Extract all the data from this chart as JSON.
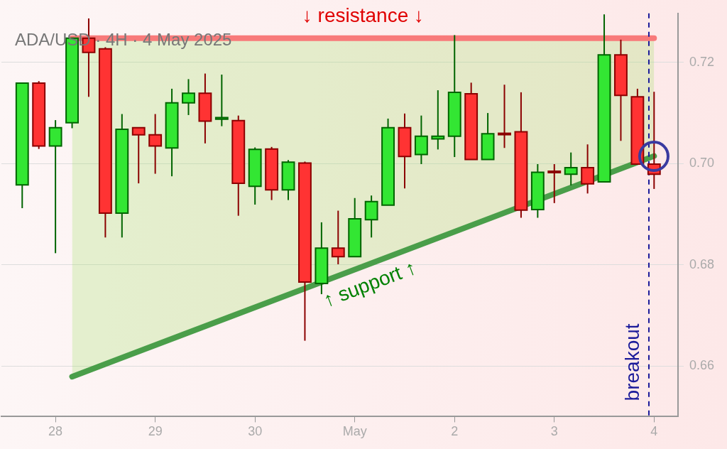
{
  "chart_data": {
    "type": "candlestick",
    "title": "ADA/USD · 4H · 4 May 2025",
    "x": [
      "2025-04-27T16:00",
      "2025-04-27T20:00",
      "2025-04-28T00:00",
      "2025-04-28T04:00",
      "2025-04-28T08:00",
      "2025-04-28T12:00",
      "2025-04-28T16:00",
      "2025-04-28T20:00",
      "2025-04-29T00:00",
      "2025-04-29T04:00",
      "2025-04-29T08:00",
      "2025-04-29T12:00",
      "2025-04-29T16:00",
      "2025-04-29T20:00",
      "2025-04-30T00:00",
      "2025-04-30T04:00",
      "2025-04-30T08:00",
      "2025-04-30T12:00",
      "2025-04-30T16:00",
      "2025-04-30T20:00",
      "2025-05-01T00:00",
      "2025-05-01T04:00",
      "2025-05-01T08:00",
      "2025-05-01T12:00",
      "2025-05-01T16:00",
      "2025-05-01T20:00",
      "2025-05-02T00:00",
      "2025-05-02T04:00",
      "2025-05-02T08:00",
      "2025-05-02T12:00",
      "2025-05-02T16:00",
      "2025-05-02T20:00",
      "2025-05-03T00:00",
      "2025-05-03T04:00",
      "2025-05-03T08:00",
      "2025-05-03T12:00",
      "2025-05-03T16:00",
      "2025-05-03T20:00",
      "2025-05-04T00:00"
    ],
    "ohlc": [
      [
        0.6958,
        0.7159,
        0.6912,
        0.7159
      ],
      [
        0.7159,
        0.7163,
        0.7029,
        0.7035
      ],
      [
        0.7035,
        0.7086,
        0.6823,
        0.7071
      ],
      [
        0.7081,
        0.7249,
        0.707,
        0.7248
      ],
      [
        0.7248,
        0.7287,
        0.7132,
        0.722
      ],
      [
        0.7227,
        0.723,
        0.6854,
        0.6902
      ],
      [
        0.6902,
        0.7098,
        0.6854,
        0.7068
      ],
      [
        0.7071,
        0.7071,
        0.6961,
        0.7057
      ],
      [
        0.7057,
        0.7098,
        0.698,
        0.7035
      ],
      [
        0.7031,
        0.7148,
        0.6975,
        0.712
      ],
      [
        0.712,
        0.7167,
        0.7096,
        0.7139
      ],
      [
        0.7139,
        0.7178,
        0.704,
        0.7084
      ],
      [
        0.7088,
        0.7176,
        0.7074,
        0.7091
      ],
      [
        0.7085,
        0.7095,
        0.6897,
        0.6961
      ],
      [
        0.6955,
        0.7032,
        0.6919,
        0.7028
      ],
      [
        0.7029,
        0.7033,
        0.6928,
        0.6948
      ],
      [
        0.6948,
        0.7007,
        0.6928,
        0.7003
      ],
      [
        0.7001,
        0.7004,
        0.665,
        0.6766
      ],
      [
        0.6763,
        0.6884,
        0.6742,
        0.6833
      ],
      [
        0.6833,
        0.6907,
        0.6801,
        0.6816
      ],
      [
        0.6816,
        0.6932,
        0.6816,
        0.6891
      ],
      [
        0.6889,
        0.6937,
        0.6854,
        0.6925
      ],
      [
        0.6918,
        0.7089,
        0.6918,
        0.7071
      ],
      [
        0.7071,
        0.7099,
        0.6951,
        0.7014
      ],
      [
        0.7018,
        0.7095,
        0.6999,
        0.7054
      ],
      [
        0.7049,
        0.7145,
        0.7028,
        0.7054
      ],
      [
        0.7054,
        0.7254,
        0.7013,
        0.7141
      ],
      [
        0.7138,
        0.716,
        0.7008,
        0.7008
      ],
      [
        0.7008,
        0.71,
        0.7008,
        0.7059
      ],
      [
        0.706,
        0.7156,
        0.7031,
        0.706
      ],
      [
        0.7063,
        0.7141,
        0.6893,
        0.6908
      ],
      [
        0.6909,
        0.6999,
        0.6893,
        0.6983
      ],
      [
        0.6985,
        0.6999,
        0.6922,
        0.6984
      ],
      [
        0.6979,
        0.7022,
        0.6957,
        0.6992
      ],
      [
        0.6992,
        0.7038,
        0.6941,
        0.696
      ],
      [
        0.6964,
        0.7295,
        0.6964,
        0.7215
      ],
      [
        0.7215,
        0.7245,
        0.7045,
        0.7135
      ],
      [
        0.7132,
        0.7148,
        0.6999,
        0.6999
      ],
      [
        0.6999,
        0.7142,
        0.695,
        0.6979
      ]
    ],
    "series": [
      {
        "type": "line",
        "color": "#f87a7a",
        "x": [
          "2025-04-28T04:00",
          "2025-05-04T00:00"
        ],
        "values": [
          0.7248,
          0.7248
        ]
      },
      {
        "type": "line",
        "color": "#4a9e4a",
        "x": [
          "2025-04-28T04:00",
          "2025-05-04T00:00"
        ],
        "values": [
          0.6579,
          0.7015
        ]
      }
    ],
    "ref_lines": [
      {
        "axis": "x",
        "value": "2025-05-03T22:45",
        "label": "breakout",
        "color": "#1a1a9a",
        "line_style": "dashed"
      }
    ],
    "annotations": [
      "↓ resistance ↓",
      "↑ support ↑"
    ],
    "xlim": [
      "2025-04-27T11:00",
      "2025-05-04T05:45"
    ],
    "xticks": [
      {
        "value": "2025-04-28",
        "label": "28"
      },
      {
        "value": "2025-04-29",
        "label": "29"
      },
      {
        "value": "2025-04-30",
        "label": "30"
      },
      {
        "value": "2025-05-01",
        "label": "May"
      },
      {
        "value": "2025-05-02",
        "label": "2"
      },
      {
        "value": "2025-05-03",
        "label": "3"
      },
      {
        "value": "2025-05-04",
        "label": "4"
      }
    ],
    "ylim": [
      0.65,
      0.7297
    ],
    "yticks": [
      0.66,
      0.68,
      {
        "value": 0.7,
        "label": "0.70"
      },
      0.72
    ],
    "grid": "y",
    "legend": false
  }
}
